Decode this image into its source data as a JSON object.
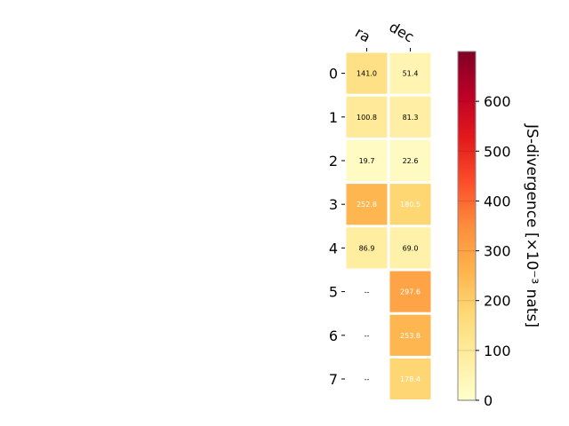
{
  "chart_data": {
    "type": "heatmap",
    "columns": [
      "ra",
      "dec"
    ],
    "rows": [
      "0",
      "1",
      "2",
      "3",
      "4",
      "5",
      "6",
      "7"
    ],
    "values": [
      [
        141.0,
        51.4
      ],
      [
        100.8,
        81.3
      ],
      [
        19.7,
        22.6
      ],
      [
        252.8,
        180.5
      ],
      [
        86.9,
        69.0
      ],
      [
        null,
        297.6
      ],
      [
        null,
        253.8
      ],
      [
        null,
        178.4
      ]
    ],
    "cell_labels": [
      [
        "141.0",
        "51.4"
      ],
      [
        "100.8",
        "81.3"
      ],
      [
        "19.7",
        "22.6"
      ],
      [
        "252.8",
        "180.5"
      ],
      [
        "86.9",
        "69.0"
      ],
      [
        "--",
        "297.6"
      ],
      [
        "--",
        "253.8"
      ],
      [
        "--",
        "178.4"
      ]
    ],
    "colorbar": {
      "label": "JS-divergence [×10⁻³ nats]",
      "min": 0,
      "max": 700,
      "ticks": [
        "0",
        "100",
        "200",
        "300",
        "400",
        "500",
        "600"
      ],
      "colormap": "YlOrRd"
    },
    "colors": {
      "grid": "#ffffff",
      "text_dark": "#000000",
      "text_light": "#ffffff"
    }
  }
}
